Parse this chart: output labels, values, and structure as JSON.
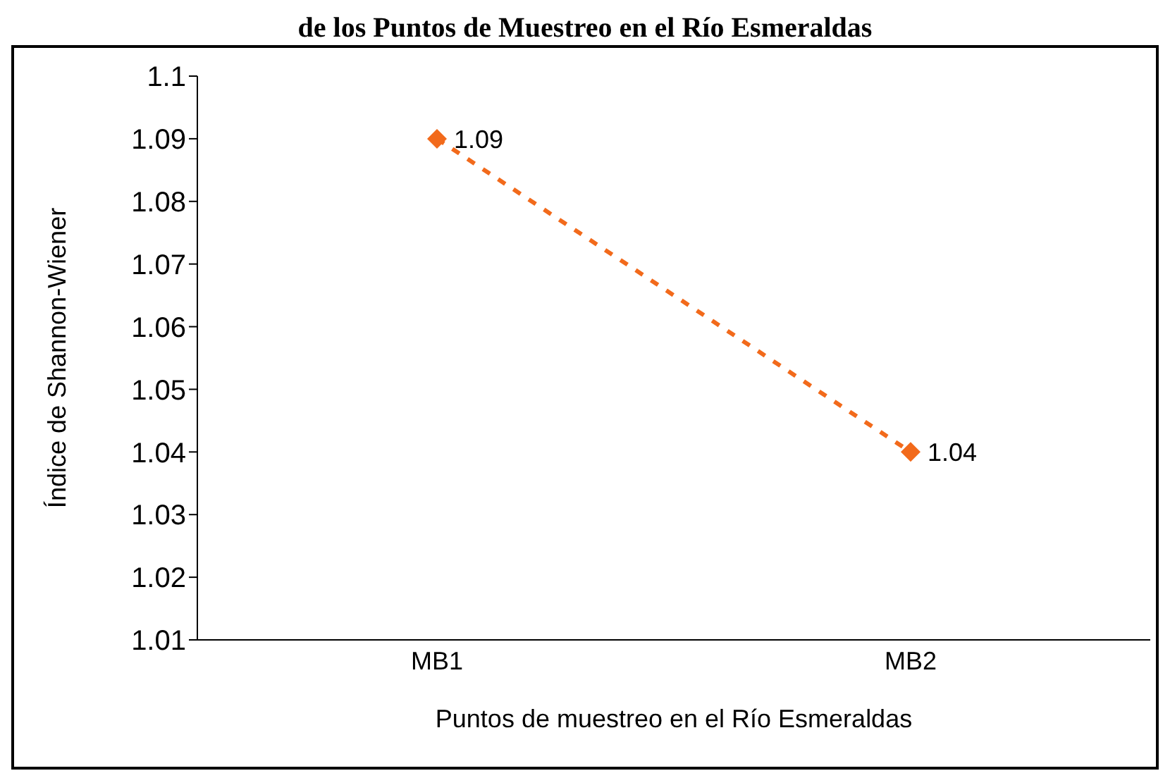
{
  "chart_data": {
    "type": "line",
    "title": "de los Puntos de Muestreo en el Río Esmeraldas",
    "xlabel": "Puntos de muestreo en el Río Esmeraldas",
    "ylabel": "Índice de Shannon-Wiener",
    "categories": [
      "MB1",
      "MB2"
    ],
    "series": [
      {
        "color": "#f26a1b",
        "values": [
          1.09,
          1.04
        ]
      }
    ],
    "ylim": [
      1.01,
      1.1
    ],
    "yticks": [
      1.01,
      1.02,
      1.03,
      1.04,
      1.05,
      1.06,
      1.07,
      1.08,
      1.09,
      1.1
    ],
    "marker": "diamond",
    "line_style": "dashed",
    "data_labels": true
  }
}
